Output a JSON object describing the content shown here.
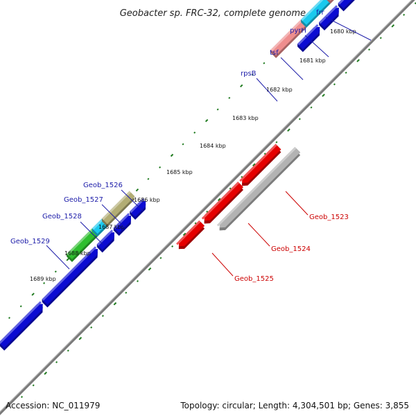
{
  "title": "Geobacter sp. FRC-32, complete genome",
  "accession": "Accession: NC_011979",
  "summary": "Topology: circular; Length: 4,304,501 bp; Genes: 3,855",
  "colors": {
    "backbone": "#7f7f7f",
    "tick": "#1e7a1e",
    "label_blue": "#1a1aa8",
    "label_red": "#cc0000",
    "gene_blue": "#0b0bd2",
    "gene_red": "#e50000",
    "gene_gray": "#b3b3b3",
    "gene_salmon": "#ee8e8e",
    "gene_cyan": "#19c9ee",
    "gene_green": "#2fbf2f",
    "gene_olive": "#b2ad74",
    "gene_lavender": "#7f7fcf"
  },
  "scale_labels": [
    "1680 kbp",
    "1681 kbp",
    "1682 kbp",
    "1683 kbp",
    "1684 kbp",
    "1685 kbp",
    "1686 kbp",
    "1687 kbp",
    "1688 kbp",
    "1689 kbp"
  ],
  "gene_labels": [
    {
      "text": "frr",
      "color": "label_blue"
    },
    {
      "text": "pyrH",
      "color": "label_blue"
    },
    {
      "text": "tsf",
      "color": "label_blue"
    },
    {
      "text": "rpsB",
      "color": "label_blue"
    },
    {
      "text": "Geob_1526",
      "color": "label_blue"
    },
    {
      "text": "Geob_1527",
      "color": "label_blue"
    },
    {
      "text": "Geob_1528",
      "color": "label_blue"
    },
    {
      "text": "Geob_1529",
      "color": "label_blue"
    },
    {
      "text": "Geob_1523",
      "color": "label_red"
    },
    {
      "text": "Geob_1524",
      "color": "label_red"
    },
    {
      "text": "Geob_1525",
      "color": "label_red"
    }
  ]
}
